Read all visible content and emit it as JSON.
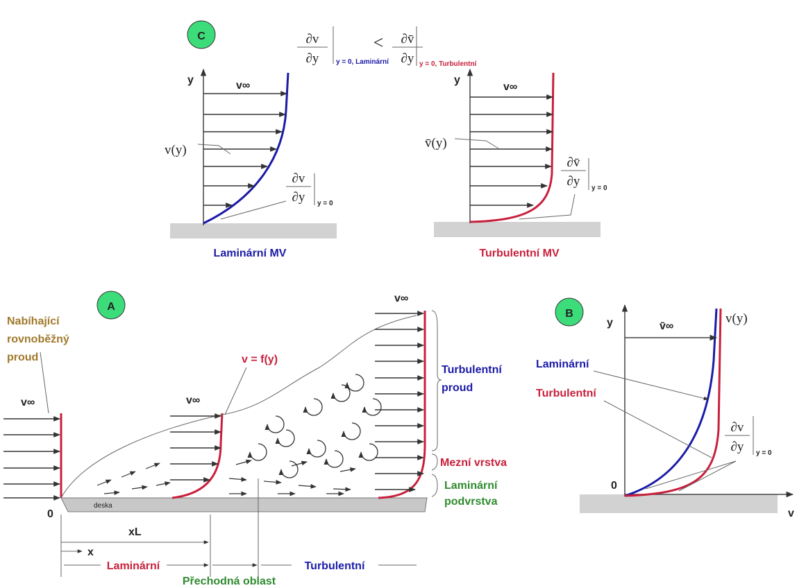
{
  "panel_c": {
    "badge": "C",
    "comparison": {
      "left": {
        "numerator": "∂v",
        "denominator": "∂y",
        "subscript": "y = 0, Laminární"
      },
      "operator": "<",
      "right": {
        "numerator": "∂v̄",
        "denominator": "∂y",
        "subscript": "y = 0, Turbulentní"
      }
    },
    "laminar": {
      "axis": "y",
      "v_inf": "v∞",
      "profile": "v(y)",
      "gradient": {
        "numerator": "∂v",
        "denominator": "∂y",
        "subscript": "y = 0"
      },
      "caption": "Laminární  MV"
    },
    "turbulent": {
      "axis": "y",
      "v_inf": "v∞",
      "profile": "v̄(y)",
      "gradient": {
        "numerator": "∂v̄",
        "denominator": "∂y",
        "subscript": "y = 0"
      },
      "caption": "Turbulentní  MV"
    }
  },
  "panel_a": {
    "badge": "A",
    "incoming": [
      "Nabíhající",
      "rovnoběžný",
      "proud"
    ],
    "v_inf_left": "v∞",
    "v_inf_middle": "v∞",
    "v_inf_right": "v∞",
    "profile": "v = f(y)",
    "turbulent_flow": [
      "Turbulentní",
      "proud"
    ],
    "boundary_layer": "Mezní vrstva",
    "laminar_sublayer": [
      "Laminární",
      "podvrstva"
    ],
    "plate": "deska",
    "origin": "0",
    "x_l": "xL",
    "x": "x",
    "laminar": "Laminární",
    "transition": "Přechodná oblast",
    "turbulent": "Turbulentní"
  },
  "panel_b": {
    "badge": "B",
    "axis_y": "y",
    "axis_x": "v",
    "origin": "0",
    "v_inf": "v̄∞",
    "profile": "v(y)",
    "laminar": "Laminární",
    "turbulent": "Turbulentní",
    "gradient": {
      "numerator": "∂v",
      "denominator": "∂y",
      "subscript": "y = 0"
    }
  }
}
